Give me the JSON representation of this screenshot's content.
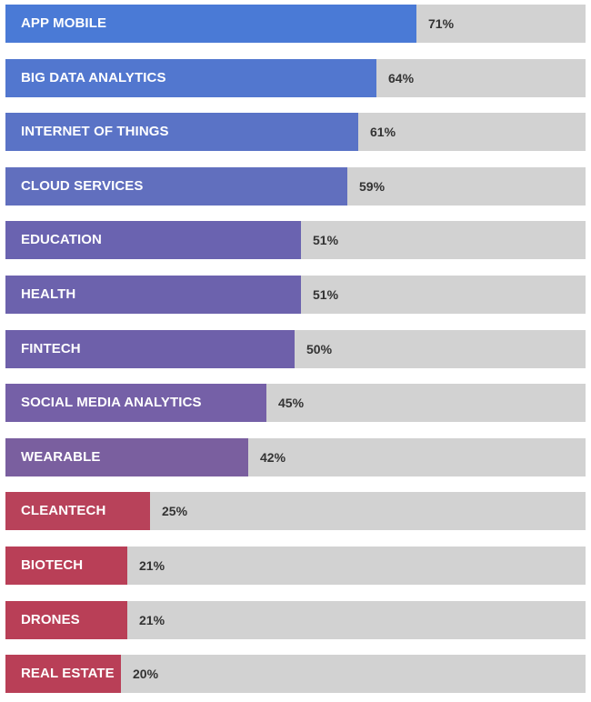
{
  "chart_data": {
    "type": "bar",
    "orientation": "horizontal",
    "title": "",
    "xlabel": "",
    "ylabel": "",
    "xlim": [
      0,
      100
    ],
    "value_suffix": "%",
    "categories": [
      "APP MOBILE",
      "BIG DATA ANALYTICS",
      "INTERNET OF THINGS",
      "CLOUD SERVICES",
      "EDUCATION",
      "HEALTH",
      "FINTECH",
      "SOCIAL MEDIA ANALYTICS",
      "WEARABLE",
      "CLEANTECH",
      "BIOTECH",
      "DRONES",
      "REAL ESTATE"
    ],
    "values": [
      71,
      64,
      61,
      59,
      51,
      51,
      50,
      45,
      42,
      25,
      21,
      21,
      20
    ],
    "value_labels": [
      "71%",
      "64%",
      "61%",
      "59%",
      "51%",
      "51%",
      "50%",
      "45%",
      "42%",
      "25%",
      "21%",
      "21%",
      "20%"
    ],
    "colors": [
      "#4a7ad6",
      "#5277cf",
      "#5a73c6",
      "#616fbe",
      "#6a63b0",
      "#6c62ad",
      "#6e60aa",
      "#7560a7",
      "#7a5f9f",
      "#b8425a",
      "#b93f57",
      "#b93f57",
      "#b93f57"
    ],
    "track_color": "#d2d2d2"
  }
}
